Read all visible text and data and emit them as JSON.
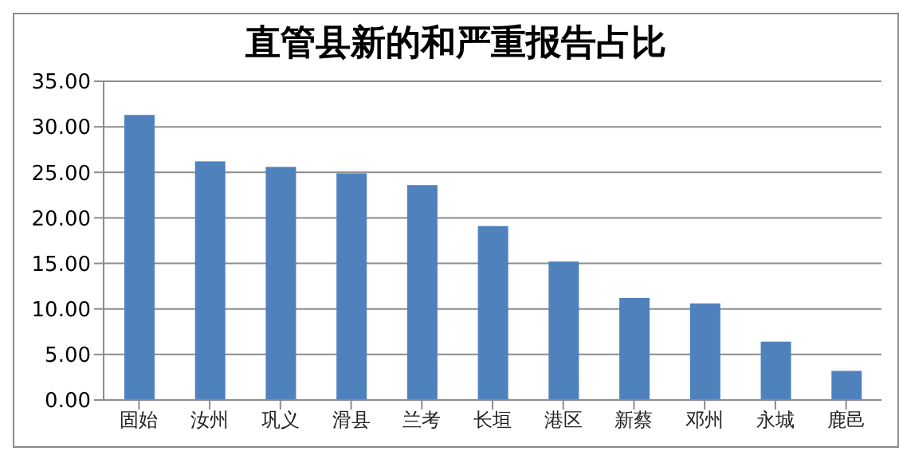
{
  "chart_data": {
    "type": "bar",
    "title": "直管县新的和严重报告占比",
    "categories": [
      "固始",
      "汝州",
      "巩义",
      "滑县",
      "兰考",
      "长垣",
      "港区",
      "新蔡",
      "邓州",
      "永城",
      "鹿邑"
    ],
    "values": [
      31.3,
      26.2,
      25.6,
      24.9,
      23.6,
      19.1,
      15.2,
      11.2,
      10.6,
      6.4,
      3.2
    ],
    "color": "#4f81bd",
    "ylim": [
      0,
      35
    ],
    "yticks": [
      {
        "value": 0,
        "label": "0.00"
      },
      {
        "value": 5,
        "label": "5.00"
      },
      {
        "value": 10,
        "label": "10.00"
      },
      {
        "value": 15,
        "label": "15.00"
      },
      {
        "value": 20,
        "label": "20.00"
      },
      {
        "value": 25,
        "label": "25.00"
      },
      {
        "value": 30,
        "label": "30.00"
      },
      {
        "value": 35,
        "label": "35.00"
      }
    ],
    "grid": "y",
    "legend": false
  }
}
